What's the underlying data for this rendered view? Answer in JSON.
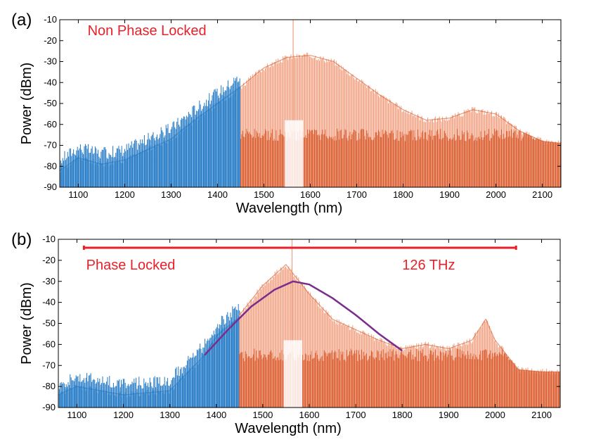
{
  "chart_data": [
    {
      "panel": "(a)",
      "type": "line",
      "xlabel": "Wavelength (nm)",
      "ylabel": "Power (dBm)",
      "xlim": [
        1060,
        2140
      ],
      "ylim": [
        -90,
        -10
      ],
      "xticks": [
        1100,
        1200,
        1300,
        1400,
        1500,
        1600,
        1700,
        1800,
        1900,
        2000,
        2100
      ],
      "yticks": [
        -90,
        -80,
        -70,
        -60,
        -50,
        -40,
        -30,
        -20,
        -10
      ],
      "grid": false,
      "annotations": [
        {
          "text": "Non Phase Locked",
          "x": 1120,
          "y": -15
        }
      ],
      "colors": {
        "blue_band": "#1f77c4",
        "blue_light": "#7ab8e6",
        "orange_band": "#d95525",
        "orange_light": "#f0a080"
      },
      "series": [
        {
          "color": "#1f77c4",
          "x": [
            1060,
            1100,
            1150,
            1200,
            1250,
            1300,
            1350,
            1400,
            1450
          ],
          "y_peak": [
            -82,
            -76,
            -79,
            -77,
            -72,
            -67,
            -58,
            -50,
            -42
          ],
          "y_floor": [
            -90,
            -90,
            -90,
            -90,
            -90,
            -90,
            -90,
            -90,
            -90
          ]
        },
        {
          "color": "#d95525",
          "x": [
            1450,
            1500,
            1550,
            1600,
            1650,
            1700,
            1750,
            1800,
            1850,
            1900,
            1950,
            2000,
            2050,
            2100,
            2140
          ],
          "y_peak": [
            -42,
            -33,
            -28,
            -27,
            -30,
            -38,
            -46,
            -53,
            -58,
            -57,
            -53,
            -55,
            -63,
            -68,
            -69
          ],
          "y_floor": [
            -90,
            -90,
            -90,
            -90,
            -90,
            -90,
            -90,
            -90,
            -90,
            -90,
            -90,
            -90,
            -90,
            -90,
            -90
          ]
        }
      ]
    },
    {
      "panel": "(b)",
      "type": "line",
      "xlabel": "Wavelength (nm)",
      "ylabel": "Power (dBm)",
      "xlim": [
        1060,
        2140
      ],
      "ylim": [
        -90,
        -10
      ],
      "xticks": [
        1100,
        1200,
        1300,
        1400,
        1500,
        1600,
        1700,
        1800,
        1900,
        2000,
        2100
      ],
      "yticks": [
        -90,
        -80,
        -70,
        -60,
        -50,
        -40,
        -30,
        -20,
        -10
      ],
      "grid": false,
      "annotations": [
        {
          "text": "Phase Locked",
          "x": 1120,
          "y": -22
        },
        {
          "text": "126 THz",
          "x": 1800,
          "y": -22
        }
      ],
      "span_bar": {
        "x_start": 1115,
        "x_end": 2045,
        "y": -14,
        "color": "#e8202a"
      },
      "fit_curve": {
        "color": "#7b2d8e",
        "x": [
          1375,
          1425,
          1475,
          1525,
          1565,
          1600,
          1650,
          1700,
          1750,
          1800
        ],
        "y": [
          -65,
          -53,
          -42,
          -34,
          -30,
          -31.5,
          -38,
          -46,
          -55,
          -63
        ]
      },
      "series": [
        {
          "color": "#1f77c4",
          "x": [
            1060,
            1100,
            1200,
            1300,
            1340,
            1375,
            1400,
            1450
          ],
          "y_peak": [
            -84,
            -80,
            -84,
            -82,
            -73,
            -65,
            -56,
            -47
          ],
          "y_floor": [
            -90,
            -90,
            -90,
            -90,
            -90,
            -90,
            -90,
            -90
          ]
        },
        {
          "color": "#d95525",
          "x": [
            1450,
            1500,
            1550,
            1600,
            1650,
            1700,
            1750,
            1800,
            1850,
            1900,
            1950,
            1980,
            2000,
            2050,
            2100,
            2140
          ],
          "y_peak": [
            -46,
            -32,
            -22,
            -36,
            -48,
            -53,
            -58,
            -62,
            -60,
            -62,
            -58,
            -48,
            -58,
            -72,
            -73,
            -73
          ],
          "y_floor": [
            -90,
            -90,
            -90,
            -90,
            -90,
            -90,
            -90,
            -90,
            -90,
            -90,
            -90,
            -90,
            -90,
            -90,
            -90,
            -90
          ]
        }
      ]
    }
  ]
}
